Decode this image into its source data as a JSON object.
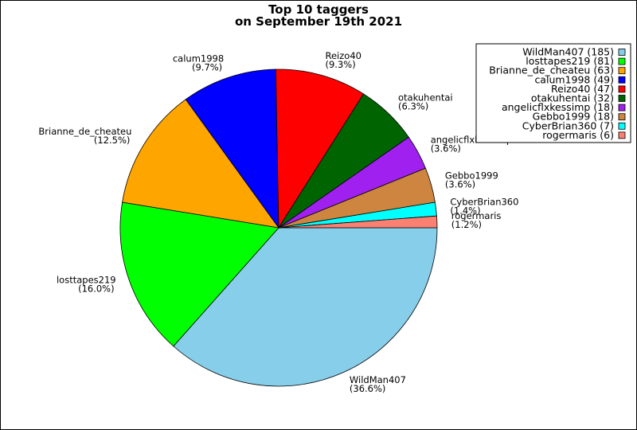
{
  "chart_data": {
    "type": "pie",
    "title": [
      "Top 10 taggers",
      "on September 19th 2021"
    ],
    "legend_position": "top-right",
    "slices": [
      {
        "name": "WildMan407",
        "value": 185,
        "percent_label": "(36.6%)",
        "legend_label": "WildMan407 (185)",
        "color": "#87ceeb"
      },
      {
        "name": "losttapes219",
        "value": 81,
        "percent_label": "(16.0%)",
        "legend_label": "losttapes219 (81)",
        "color": "#00ff00"
      },
      {
        "name": "Brianne_de_cheateu",
        "value": 63,
        "percent_label": "(12.5%)",
        "legend_label": "Brianne_de_cheateu (63)",
        "color": "#ffa500"
      },
      {
        "name": "calum1998",
        "value": 49,
        "percent_label": "(9.7%)",
        "legend_label": "calum1998 (49)",
        "color": "#0000ff"
      },
      {
        "name": "Reizo40",
        "value": 47,
        "percent_label": "(9.3%)",
        "legend_label": "Reizo40 (47)",
        "color": "#ff0000"
      },
      {
        "name": "otakuhentai",
        "value": 32,
        "percent_label": "(6.3%)",
        "legend_label": "otakuhentai (32)",
        "color": "#006400"
      },
      {
        "name": "angelicflxkessimp",
        "value": 18,
        "percent_label": "(3.6%)",
        "legend_label": "angelicflxkessimp (18)",
        "color": "#a020f0"
      },
      {
        "name": "Gebbo1999",
        "value": 18,
        "percent_label": "(3.6%)",
        "legend_label": "Gebbo1999 (18)",
        "color": "#cd853f"
      },
      {
        "name": "CyberBrian360",
        "value": 7,
        "percent_label": "(1.4%)",
        "legend_label": "CyberBrian360 (7)",
        "color": "#00ffff"
      },
      {
        "name": "rogermaris",
        "value": 6,
        "percent_label": "(1.2%)",
        "legend_label": "rogermaris (6)",
        "color": "#fa8072"
      }
    ]
  }
}
